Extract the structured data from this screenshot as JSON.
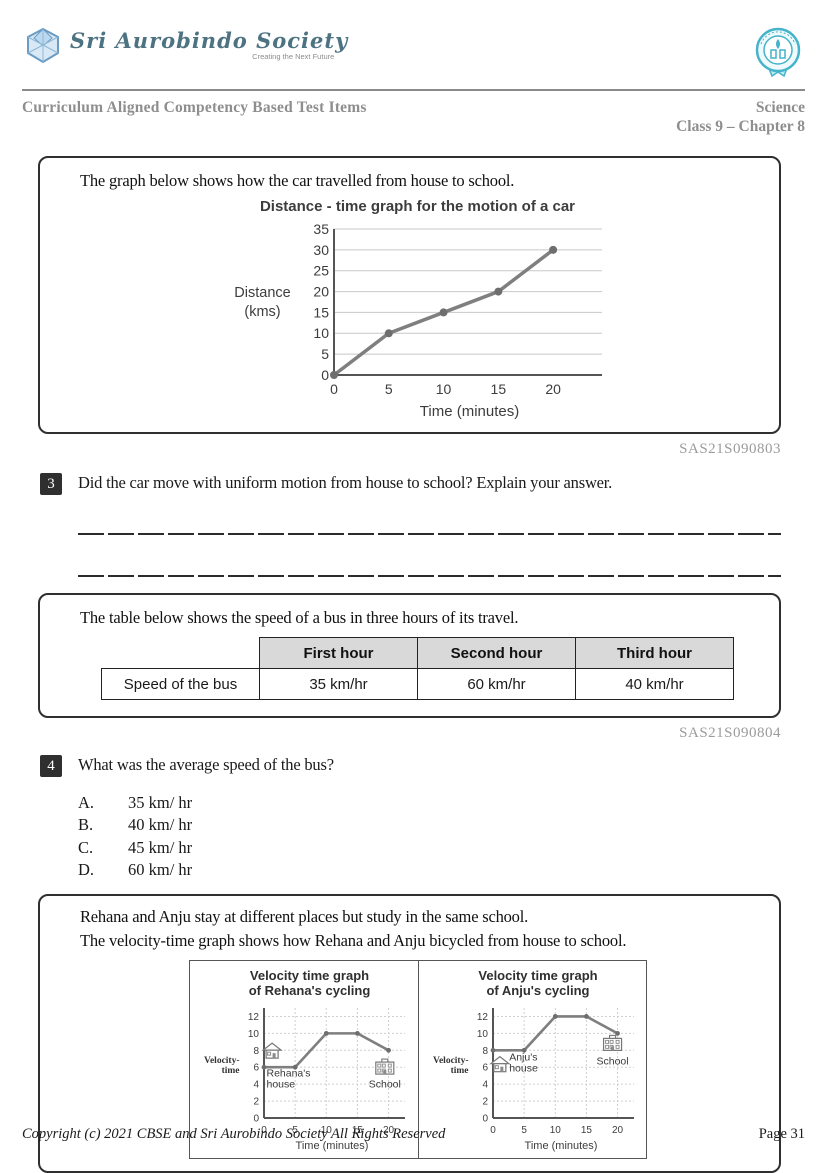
{
  "header": {
    "logo": {
      "name": "Sri Aurobindo Society",
      "tagline": "Creating the Next Future"
    },
    "doc_title": "Curriculum Aligned Competency Based Test Items",
    "subject": "Science",
    "class_chapter": "Class 9 – Chapter 8"
  },
  "colors": {
    "badge_bg": "#2f2f2f",
    "table_header_bg": "#d9d9d9",
    "chart_line": "#7f7f7f",
    "logo_teal": "#45b3c9",
    "header_gray": "#8e8e8e"
  },
  "section1": {
    "prompt": "The graph below shows how the car travelled from house to school.",
    "code": "SAS21S090803"
  },
  "q3": {
    "number": "3",
    "text": "Did the car move with uniform motion from house to school? Explain your answer."
  },
  "section2": {
    "prompt": "The table below shows the speed of a bus in three hours of its travel.",
    "table": {
      "headers": [
        "",
        "First hour",
        "Second hour",
        "Third hour"
      ],
      "rows": [
        [
          "Speed of the bus",
          "35 km/hr",
          "60 km/hr",
          "40 km/hr"
        ]
      ]
    },
    "code": "SAS21S090804"
  },
  "q4": {
    "number": "4",
    "text": "What was the average speed of the bus?",
    "options": [
      {
        "letter": "A.",
        "text": "35 km/ hr"
      },
      {
        "letter": "B.",
        "text": "40 km/ hr"
      },
      {
        "letter": "C.",
        "text": "45 km/ hr"
      },
      {
        "letter": "D.",
        "text": "60 km/ hr"
      }
    ]
  },
  "section3": {
    "prompt_line1": "Rehana and Anju stay at different places but study in the same school.",
    "prompt_line2": "The velocity-time graph shows how Rehana and Anju bicycled from house to school."
  },
  "footer": {
    "copyright": "Copyright (c) 2021 CBSE and Sri Aurobindo Society All Rights Reserved",
    "page": "Page 31"
  },
  "chart_data": [
    {
      "type": "line",
      "title": "Distance - time graph for the motion of a car",
      "xlabel": "Time (minutes)",
      "ylabel": "Distance (kms)",
      "ylabel_lines": [
        "Distance",
        "(kms)"
      ],
      "x": [
        0,
        5,
        10,
        15,
        20
      ],
      "y": [
        0,
        10,
        15,
        20,
        30
      ],
      "x_ticks": [
        0,
        5,
        10,
        15,
        20
      ],
      "y_ticks": [
        0,
        5,
        10,
        15,
        20,
        25,
        30,
        35
      ],
      "xlim": [
        0,
        23
      ],
      "ylim": [
        0,
        35
      ],
      "grid": "horizontal",
      "legend": "none"
    },
    {
      "type": "line",
      "title": "Velocity time graph of Rehana's cycling",
      "title_lines": [
        "Velocity time graph",
        "of Rehana's cycling"
      ],
      "xlabel": "Time (minutes)",
      "ylabel": "Velocity-time",
      "x": [
        0,
        5,
        10,
        15,
        20
      ],
      "y": [
        6,
        6,
        10,
        10,
        8
      ],
      "x_ticks": [
        0,
        5,
        10,
        15,
        20
      ],
      "y_ticks": [
        0,
        2,
        4,
        6,
        8,
        10,
        12
      ],
      "xlim": [
        0,
        22
      ],
      "ylim": [
        0,
        13
      ],
      "grid": "both-dashed",
      "legend": "none",
      "annotations": [
        {
          "icon": "house",
          "x": 1.3,
          "y": 7.9,
          "label": "Rehana's house",
          "label_lines": [
            "Rehana's",
            "house"
          ],
          "label_x": 0.4,
          "label_y": 4.9,
          "anchor": "start"
        },
        {
          "icon": "school",
          "x": 19.4,
          "y": 5.9,
          "label": "School",
          "label_lines": [
            "School"
          ],
          "label_x": 19.4,
          "label_y": 3.6,
          "anchor": "middle"
        }
      ]
    },
    {
      "type": "line",
      "title": "Velocity time graph of Anju's cycling",
      "title_lines": [
        "Velocity time graph",
        "of Anju's cycling"
      ],
      "xlabel": "Time (minutes)",
      "ylabel": "Velocity-time",
      "x": [
        0,
        5,
        10,
        15,
        20
      ],
      "y": [
        8,
        8,
        12,
        12,
        10
      ],
      "x_ticks": [
        0,
        5,
        10,
        15,
        20
      ],
      "y_ticks": [
        0,
        2,
        4,
        6,
        8,
        10,
        12
      ],
      "xlim": [
        0,
        22
      ],
      "ylim": [
        0,
        13
      ],
      "grid": "both-dashed",
      "legend": "none",
      "annotations": [
        {
          "icon": "house",
          "x": 1.1,
          "y": 6.3,
          "label": "Anju's house",
          "label_lines": [
            "Anju's",
            "house"
          ],
          "label_x": 2.6,
          "label_y": 6.8,
          "anchor": "start"
        },
        {
          "icon": "school",
          "x": 19.2,
          "y": 8.7,
          "label": "School",
          "label_lines": [
            "School"
          ],
          "label_x": 19.2,
          "label_y": 6.3,
          "anchor": "middle"
        }
      ]
    }
  ]
}
